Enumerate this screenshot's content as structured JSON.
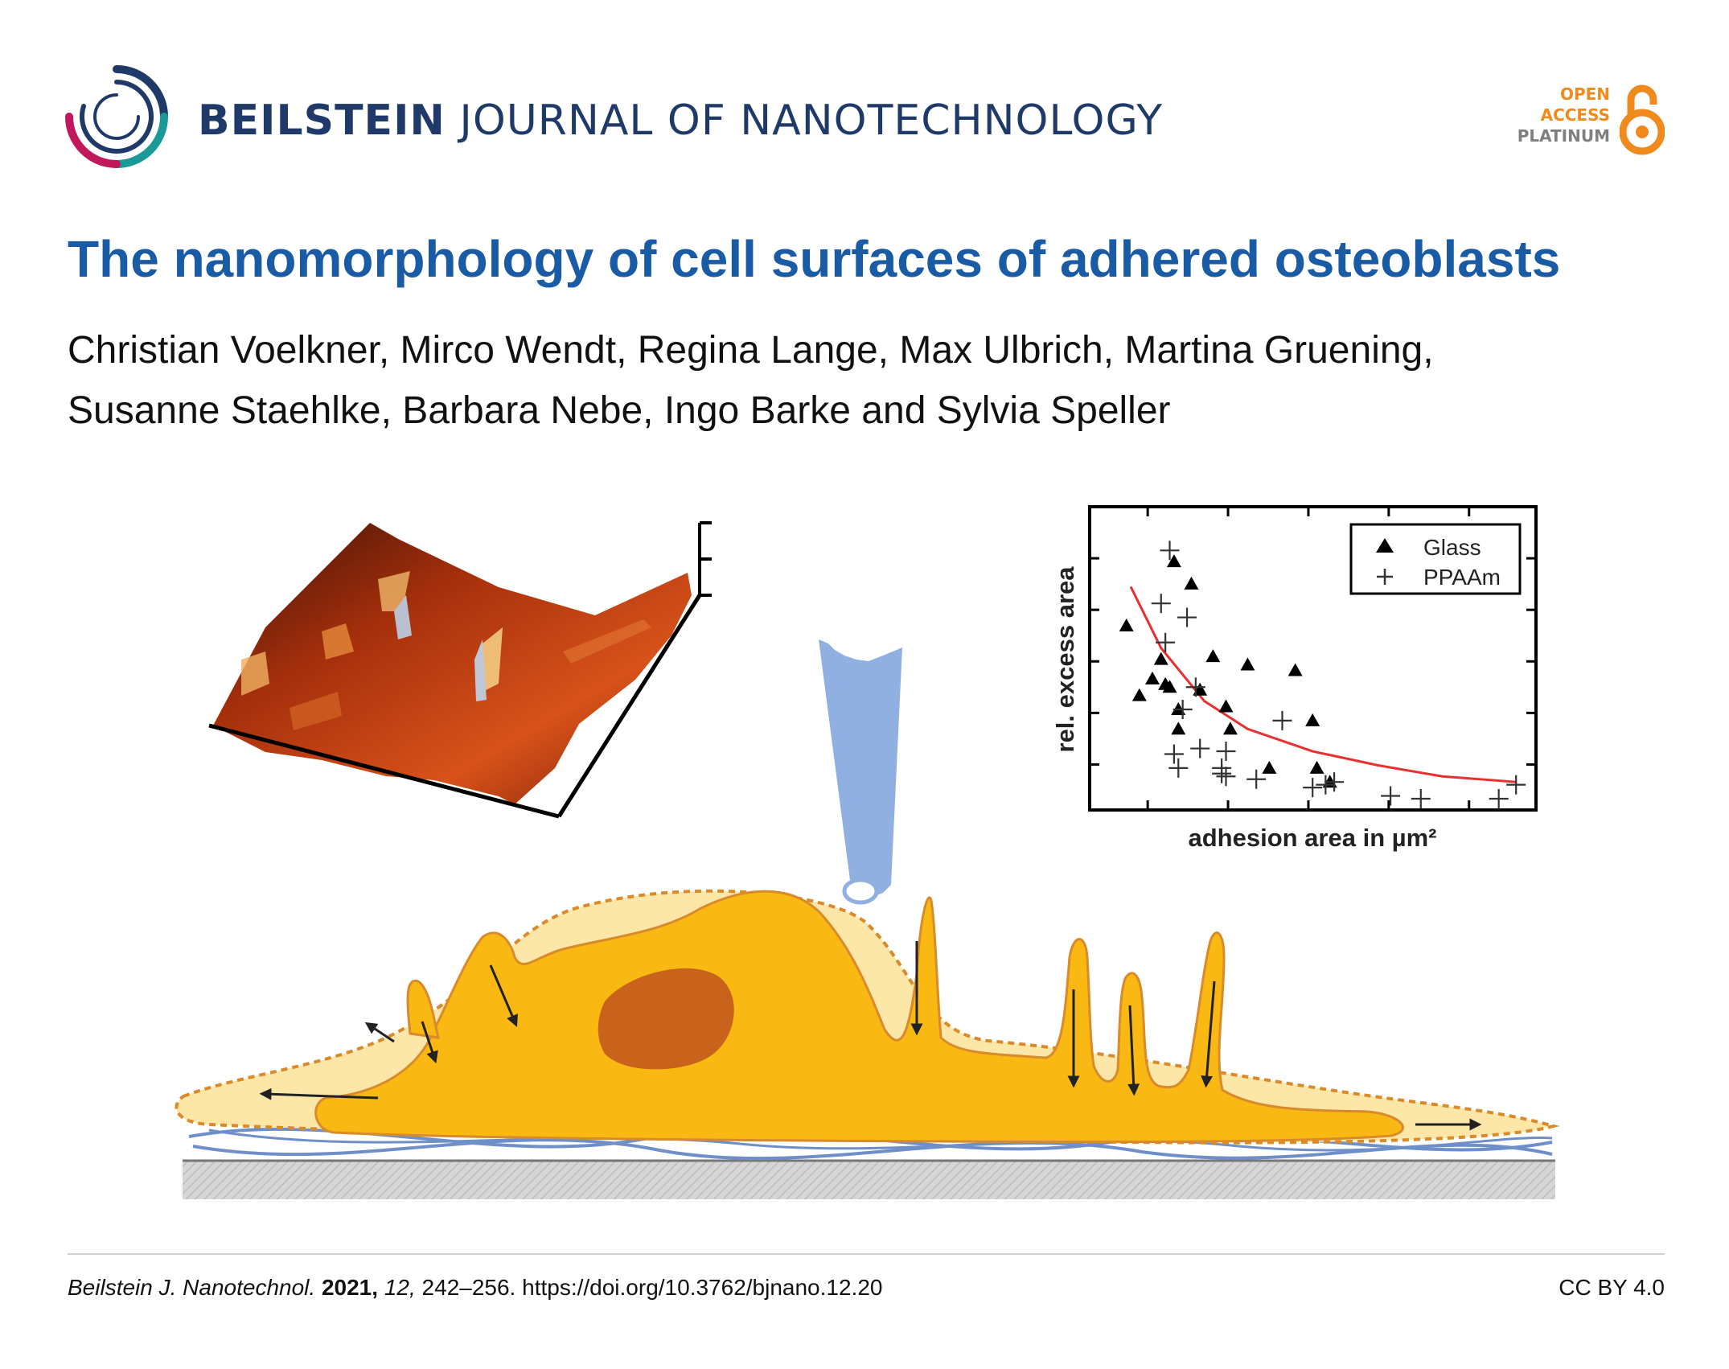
{
  "journal": {
    "name_bold": "BEILSTEIN",
    "name_rest": "JOURNAL OF NANOTECHNOLOGY",
    "open_access": [
      "OPEN",
      "ACCESS",
      "PLATINUM"
    ]
  },
  "article": {
    "title": "The nanomorphology of cell surfaces of adhered osteoblasts",
    "authors_line1": "Christian Voelkner, Mirco Wendt, Regina Lange, Max Ulbrich, Martina Gruening,",
    "authors_line2": "Susanne Staehlke, Barbara Nebe, Ingo Barke and Sylvia Speller"
  },
  "citation": {
    "journal_abbrev": "Beilstein J. Nanotechnol.",
    "year": "2021,",
    "volume": "12,",
    "pages": "242–256.",
    "doi": "https://doi.org/10.3762/bjnano.12.20",
    "license": "CC BY 4.0"
  },
  "colors": {
    "journal_navy": "#1f3a68",
    "title_blue": "#1a5ba6",
    "oa_orange": "#f08a1c",
    "cell_outer": "#fde7a8",
    "cell_inner": "#f9b912",
    "nucleus": "#c9621a",
    "probe_blue": "#8fb0e0",
    "fit_red": "#e83030"
  },
  "chart_data": {
    "type": "scatter",
    "xlabel": "adhesion area in µm²",
    "ylabel": "rel. excess area",
    "xlim": [
      0,
      10
    ],
    "ylim": [
      0,
      10
    ],
    "legend": {
      "position": "top-right",
      "entries": [
        "Glass",
        "PPAAm"
      ]
    },
    "series": [
      {
        "name": "Glass",
        "marker": "triangle",
        "points": [
          [
            0.7,
            6.2
          ],
          [
            1.0,
            3.7
          ],
          [
            1.5,
            5.0
          ],
          [
            1.7,
            4.0
          ],
          [
            1.8,
            8.5
          ],
          [
            2.2,
            7.7
          ],
          [
            1.6,
            4.1
          ],
          [
            1.9,
            3.2
          ],
          [
            1.9,
            2.5
          ],
          [
            2.4,
            3.9
          ],
          [
            2.7,
            5.1
          ],
          [
            3.0,
            3.3
          ],
          [
            3.1,
            2.5
          ],
          [
            3.5,
            4.8
          ],
          [
            4.0,
            1.1
          ],
          [
            4.6,
            4.6
          ],
          [
            5.0,
            2.8
          ],
          [
            5.1,
            1.1
          ],
          [
            5.4,
            0.6
          ],
          [
            1.3,
            4.3
          ]
        ]
      },
      {
        "name": "PPAAm",
        "marker": "plus",
        "points": [
          [
            1.7,
            8.9
          ],
          [
            1.5,
            7.0
          ],
          [
            2.1,
            6.5
          ],
          [
            1.6,
            5.6
          ],
          [
            2.3,
            4.0
          ],
          [
            2.0,
            3.2
          ],
          [
            2.4,
            1.8
          ],
          [
            1.8,
            1.6
          ],
          [
            3.0,
            1.7
          ],
          [
            1.9,
            1.1
          ],
          [
            2.9,
            1.1
          ],
          [
            3.0,
            0.8
          ],
          [
            3.7,
            0.7
          ],
          [
            4.3,
            2.8
          ],
          [
            2.9,
            0.9
          ],
          [
            5.0,
            0.4
          ],
          [
            5.3,
            0.5
          ],
          [
            5.5,
            0.6
          ],
          [
            6.8,
            0.1
          ],
          [
            7.5,
            0.0
          ],
          [
            9.3,
            0.0
          ],
          [
            9.7,
            0.5
          ]
        ]
      }
    ],
    "fit_curve": {
      "name": "fit",
      "points": [
        [
          0.8,
          7.6
        ],
        [
          1.5,
          5.4
        ],
        [
          2.5,
          3.5
        ],
        [
          3.5,
          2.5
        ],
        [
          5.0,
          1.7
        ],
        [
          6.5,
          1.2
        ],
        [
          8.0,
          0.8
        ],
        [
          9.7,
          0.6
        ]
      ]
    }
  }
}
